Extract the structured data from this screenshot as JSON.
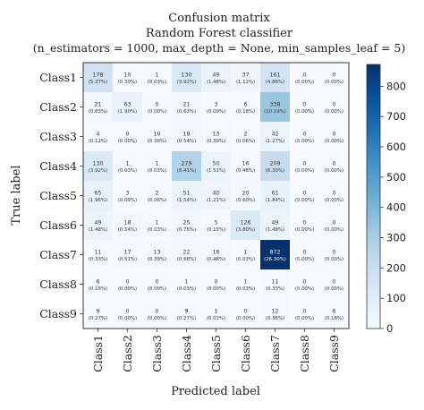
{
  "chart_data": {
    "type": "heatmap",
    "title": "Confusion matrix",
    "subtitle": "Random Forest classifier",
    "params": "(n_estimators = 1000, max_depth = None, min_samples_leaf = 5)",
    "xlabel": "Predicted label",
    "ylabel": "True label",
    "row_labels": [
      "Class1",
      "Class2",
      "Class3",
      "Class4",
      "Class5",
      "Class6",
      "Class7",
      "Class8",
      "Class9"
    ],
    "col_labels": [
      "Class1",
      "Class2",
      "Class3",
      "Class4",
      "Class5",
      "Class6",
      "Class7",
      "Class8",
      "Class9"
    ],
    "counts": [
      [
        178,
        10,
        1,
        130,
        49,
        37,
        161,
        0,
        0
      ],
      [
        21,
        63,
        0,
        21,
        3,
        6,
        338,
        0,
        0
      ],
      [
        4,
        0,
        10,
        18,
        13,
        2,
        42,
        0,
        0
      ],
      [
        130,
        1,
        1,
        279,
        50,
        16,
        209,
        0,
        0
      ],
      [
        65,
        3,
        2,
        51,
        40,
        20,
        61,
        0,
        0
      ],
      [
        49,
        18,
        1,
        25,
        5,
        126,
        49,
        0,
        0
      ],
      [
        11,
        17,
        13,
        22,
        16,
        1,
        872,
        0,
        0
      ],
      [
        6,
        0,
        0,
        1,
        0,
        1,
        11,
        0,
        0
      ],
      [
        9,
        0,
        0,
        9,
        1,
        0,
        12,
        0,
        6
      ]
    ],
    "percents": [
      [
        "(5.37%)",
        "(0.30%)",
        "(0.03%)",
        "(3.92%)",
        "(1.48%)",
        "(1.12%)",
        "(4.86%)",
        "(0.00%)",
        "(0.00%)"
      ],
      [
        "(0.63%)",
        "(1.90%)",
        "(0.00%)",
        "(0.63%)",
        "(0.09%)",
        "(0.18%)",
        "(10.19%)",
        "(0.00%)",
        "(0.00%)"
      ],
      [
        "(0.12%)",
        "(0.00%)",
        "(0.30%)",
        "(0.54%)",
        "(0.39%)",
        "(0.06%)",
        "(1.27%)",
        "(0.00%)",
        "(0.00%)"
      ],
      [
        "(3.92%)",
        "(0.03%)",
        "(0.03%)",
        "(8.41%)",
        "(1.51%)",
        "(0.48%)",
        "(6.30%)",
        "(0.00%)",
        "(0.00%)"
      ],
      [
        "(1.96%)",
        "(0.09%)",
        "(0.06%)",
        "(1.54%)",
        "(1.21%)",
        "(0.60%)",
        "(1.84%)",
        "(0.00%)",
        "(0.00%)"
      ],
      [
        "(1.48%)",
        "(0.54%)",
        "(0.03%)",
        "(0.75%)",
        "(0.15%)",
        "(3.80%)",
        "(1.48%)",
        "(0.00%)",
        "(0.00%)"
      ],
      [
        "(0.33%)",
        "(0.51%)",
        "(0.39%)",
        "(0.66%)",
        "(0.48%)",
        "(0.03%)",
        "(26.30%)",
        "(0.00%)",
        "(0.00%)"
      ],
      [
        "(0.18%)",
        "(0.00%)",
        "(0.00%)",
        "(0.03%)",
        "(0.00%)",
        "(0.03%)",
        "(0.33%)",
        "(0.00%)",
        "(0.00%)"
      ],
      [
        "(0.27%)",
        "(0.00%)",
        "(0.00%)",
        "(0.27%)",
        "(0.03%)",
        "(0.00%)",
        "(0.36%)",
        "(0.00%)",
        "(0.18%)"
      ]
    ],
    "colorbar": {
      "min": 0,
      "max": 872,
      "ticks": [
        0,
        100,
        200,
        300,
        400,
        500,
        600,
        700,
        800
      ],
      "tick_labels": [
        "0",
        "100",
        "200",
        "300",
        "400",
        "500",
        "600",
        "700",
        "800"
      ]
    },
    "colormap": [
      "#f7fbff",
      "#deebf7",
      "#c6dbef",
      "#9ecae1",
      "#6baed6",
      "#4292c6",
      "#2171b5",
      "#08519c",
      "#08306b"
    ],
    "grid": false
  }
}
